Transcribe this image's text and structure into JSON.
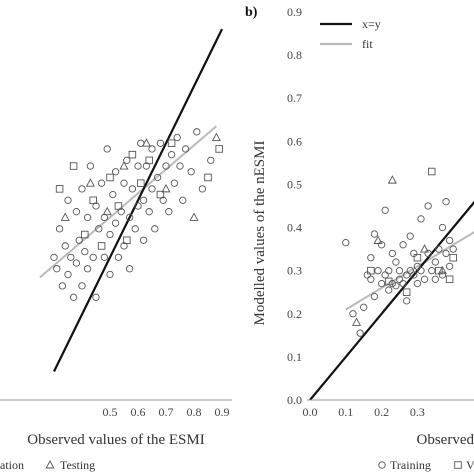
{
  "chart_data": [
    {
      "type": "scatter",
      "panel": "a",
      "title": "",
      "xlabel": "Observed values of the ESMI",
      "ylabel": "",
      "xlim": [
        0.25,
        0.9
      ],
      "ylim": [
        0.25,
        0.93
      ],
      "xticks": [
        "0.5",
        "0.6",
        "0.7",
        "0.8",
        "0.9"
      ],
      "xtick_values": [
        0.5,
        0.6,
        0.7,
        0.8,
        0.9
      ],
      "grid": false,
      "legend_items": [
        {
          "label": "ation",
          "marker": "none"
        },
        {
          "label": "Testing",
          "marker": "triangle"
        }
      ],
      "lines": [
        {
          "name": "x=y",
          "color": "#111111",
          "points": [
            [
              0.3,
              0.3
            ],
            [
              0.9,
              0.9
            ]
          ]
        },
        {
          "name": "fit",
          "color": "#bbbbbb",
          "points": [
            [
              0.25,
              0.465
            ],
            [
              0.88,
              0.73
            ]
          ]
        }
      ],
      "series": [
        {
          "name": "Training",
          "marker": "circle",
          "points": [
            [
              0.3,
              0.5
            ],
            [
              0.31,
              0.48
            ],
            [
              0.32,
              0.55
            ],
            [
              0.33,
              0.45
            ],
            [
              0.34,
              0.52
            ],
            [
              0.35,
              0.47
            ],
            [
              0.35,
              0.6
            ],
            [
              0.36,
              0.5
            ],
            [
              0.37,
              0.43
            ],
            [
              0.38,
              0.58
            ],
            [
              0.38,
              0.49
            ],
            [
              0.39,
              0.53
            ],
            [
              0.4,
              0.62
            ],
            [
              0.4,
              0.45
            ],
            [
              0.41,
              0.51
            ],
            [
              0.42,
              0.57
            ],
            [
              0.42,
              0.48
            ],
            [
              0.43,
              0.66
            ],
            [
              0.44,
              0.5
            ],
            [
              0.45,
              0.59
            ],
            [
              0.45,
              0.43
            ],
            [
              0.46,
              0.55
            ],
            [
              0.47,
              0.63
            ],
            [
              0.48,
              0.5
            ],
            [
              0.48,
              0.57
            ],
            [
              0.49,
              0.69
            ],
            [
              0.5,
              0.54
            ],
            [
              0.5,
              0.47
            ],
            [
              0.51,
              0.61
            ],
            [
              0.52,
              0.56
            ],
            [
              0.52,
              0.65
            ],
            [
              0.53,
              0.5
            ],
            [
              0.54,
              0.58
            ],
            [
              0.55,
              0.63
            ],
            [
              0.55,
              0.52
            ],
            [
              0.56,
              0.67
            ],
            [
              0.57,
              0.57
            ],
            [
              0.57,
              0.48
            ],
            [
              0.58,
              0.62
            ],
            [
              0.59,
              0.55
            ],
            [
              0.6,
              0.66
            ],
            [
              0.6,
              0.59
            ],
            [
              0.61,
              0.7
            ],
            [
              0.62,
              0.6
            ],
            [
              0.62,
              0.53
            ],
            [
              0.63,
              0.66
            ],
            [
              0.64,
              0.58
            ],
            [
              0.65,
              0.69
            ],
            [
              0.65,
              0.62
            ],
            [
              0.66,
              0.55
            ],
            [
              0.67,
              0.64
            ],
            [
              0.68,
              0.7
            ],
            [
              0.69,
              0.6
            ],
            [
              0.7,
              0.66
            ],
            [
              0.71,
              0.58
            ],
            [
              0.72,
              0.68
            ],
            [
              0.73,
              0.63
            ],
            [
              0.74,
              0.71
            ],
            [
              0.75,
              0.66
            ],
            [
              0.76,
              0.6
            ],
            [
              0.77,
              0.69
            ],
            [
              0.79,
              0.65
            ],
            [
              0.81,
              0.72
            ],
            [
              0.83,
              0.62
            ],
            [
              0.86,
              0.67
            ]
          ]
        },
        {
          "name": "Validation",
          "marker": "square",
          "points": [
            [
              0.32,
              0.62
            ],
            [
              0.37,
              0.66
            ],
            [
              0.41,
              0.54
            ],
            [
              0.44,
              0.6
            ],
            [
              0.47,
              0.52
            ],
            [
              0.5,
              0.64
            ],
            [
              0.53,
              0.59
            ],
            [
              0.56,
              0.53
            ],
            [
              0.58,
              0.68
            ],
            [
              0.61,
              0.63
            ],
            [
              0.64,
              0.67
            ],
            [
              0.68,
              0.61
            ],
            [
              0.72,
              0.7
            ],
            [
              0.85,
              0.64
            ],
            [
              0.89,
              0.69
            ]
          ]
        },
        {
          "name": "Testing",
          "marker": "triangle",
          "points": [
            [
              0.34,
              0.57
            ],
            [
              0.43,
              0.63
            ],
            [
              0.49,
              0.58
            ],
            [
              0.55,
              0.66
            ],
            [
              0.63,
              0.7
            ],
            [
              0.7,
              0.62
            ],
            [
              0.8,
              0.57
            ],
            [
              0.88,
              0.71
            ]
          ]
        }
      ]
    },
    {
      "type": "scatter",
      "panel": "b",
      "title": "",
      "xlabel": "Observed",
      "ylabel": "Modelled values of the nESMI",
      "xlim": [
        0.0,
        0.5
      ],
      "ylim": [
        0.0,
        0.9
      ],
      "xticks": [
        "0.0",
        "0.1",
        "0.2",
        "0.3"
      ],
      "xtick_values": [
        0.0,
        0.1,
        0.2,
        0.3
      ],
      "yticks": [
        "0.0",
        "0.1",
        "0.2",
        "0.3",
        "0.4",
        "0.5",
        "0.6",
        "0.7",
        "0.8",
        "0.9"
      ],
      "ytick_values": [
        0.0,
        0.1,
        0.2,
        0.3,
        0.4,
        0.5,
        0.6,
        0.7,
        0.8,
        0.9
      ],
      "grid": false,
      "legend": "top-left",
      "legend_lines": [
        {
          "label": "x=y",
          "color": "#111111"
        },
        {
          "label": "fit",
          "color": "#bbbbbb"
        }
      ],
      "legend_items": [
        {
          "label": "Training",
          "marker": "circle"
        },
        {
          "label": "V",
          "marker": "square"
        }
      ],
      "lines": [
        {
          "name": "x=y",
          "color": "#111111",
          "points": [
            [
              0.0,
              0.0
            ],
            [
              0.5,
              0.5
            ]
          ]
        },
        {
          "name": "fit",
          "color": "#bbbbbb",
          "points": [
            [
              0.1,
              0.21
            ],
            [
              0.5,
              0.41
            ]
          ]
        }
      ],
      "series": [
        {
          "name": "Training",
          "marker": "circle",
          "points": [
            [
              0.1,
              0.365
            ],
            [
              0.12,
              0.2
            ],
            [
              0.14,
              0.155
            ],
            [
              0.15,
              0.215
            ],
            [
              0.16,
              0.29
            ],
            [
              0.17,
              0.28
            ],
            [
              0.17,
              0.33
            ],
            [
              0.18,
              0.385
            ],
            [
              0.18,
              0.24
            ],
            [
              0.19,
              0.3
            ],
            [
              0.2,
              0.27
            ],
            [
              0.2,
              0.36
            ],
            [
              0.21,
              0.29
            ],
            [
              0.21,
              0.44
            ],
            [
              0.22,
              0.255
            ],
            [
              0.22,
              0.3
            ],
            [
              0.23,
              0.34
            ],
            [
              0.23,
              0.27
            ],
            [
              0.24,
              0.32
            ],
            [
              0.24,
              0.265
            ],
            [
              0.25,
              0.28
            ],
            [
              0.25,
              0.3
            ],
            [
              0.26,
              0.27
            ],
            [
              0.26,
              0.36
            ],
            [
              0.27,
              0.23
            ],
            [
              0.27,
              0.29
            ],
            [
              0.28,
              0.3
            ],
            [
              0.28,
              0.38
            ],
            [
              0.29,
              0.29
            ],
            [
              0.29,
              0.34
            ],
            [
              0.3,
              0.31
            ],
            [
              0.3,
              0.27
            ],
            [
              0.31,
              0.3
            ],
            [
              0.31,
              0.42
            ],
            [
              0.32,
              0.28
            ],
            [
              0.33,
              0.34
            ],
            [
              0.33,
              0.45
            ],
            [
              0.34,
              0.3
            ],
            [
              0.35,
              0.32
            ],
            [
              0.35,
              0.28
            ],
            [
              0.36,
              0.35
            ],
            [
              0.37,
              0.29
            ],
            [
              0.37,
              0.4
            ],
            [
              0.38,
              0.34
            ],
            [
              0.38,
              0.46
            ],
            [
              0.39,
              0.31
            ],
            [
              0.39,
              0.37
            ],
            [
              0.4,
              0.35
            ]
          ]
        },
        {
          "name": "Validation",
          "marker": "square",
          "points": [
            [
              0.17,
              0.3
            ],
            [
              0.22,
              0.275
            ],
            [
              0.27,
              0.25
            ],
            [
              0.3,
              0.33
            ],
            [
              0.34,
              0.53
            ],
            [
              0.36,
              0.3
            ],
            [
              0.39,
              0.28
            ],
            [
              0.4,
              0.33
            ]
          ]
        },
        {
          "name": "Testing",
          "marker": "triangle",
          "points": [
            [
              0.13,
              0.18
            ],
            [
              0.19,
              0.37
            ],
            [
              0.23,
              0.51
            ],
            [
              0.32,
              0.35
            ],
            [
              0.37,
              0.3
            ]
          ]
        }
      ]
    }
  ],
  "panel_b_label": "b)"
}
